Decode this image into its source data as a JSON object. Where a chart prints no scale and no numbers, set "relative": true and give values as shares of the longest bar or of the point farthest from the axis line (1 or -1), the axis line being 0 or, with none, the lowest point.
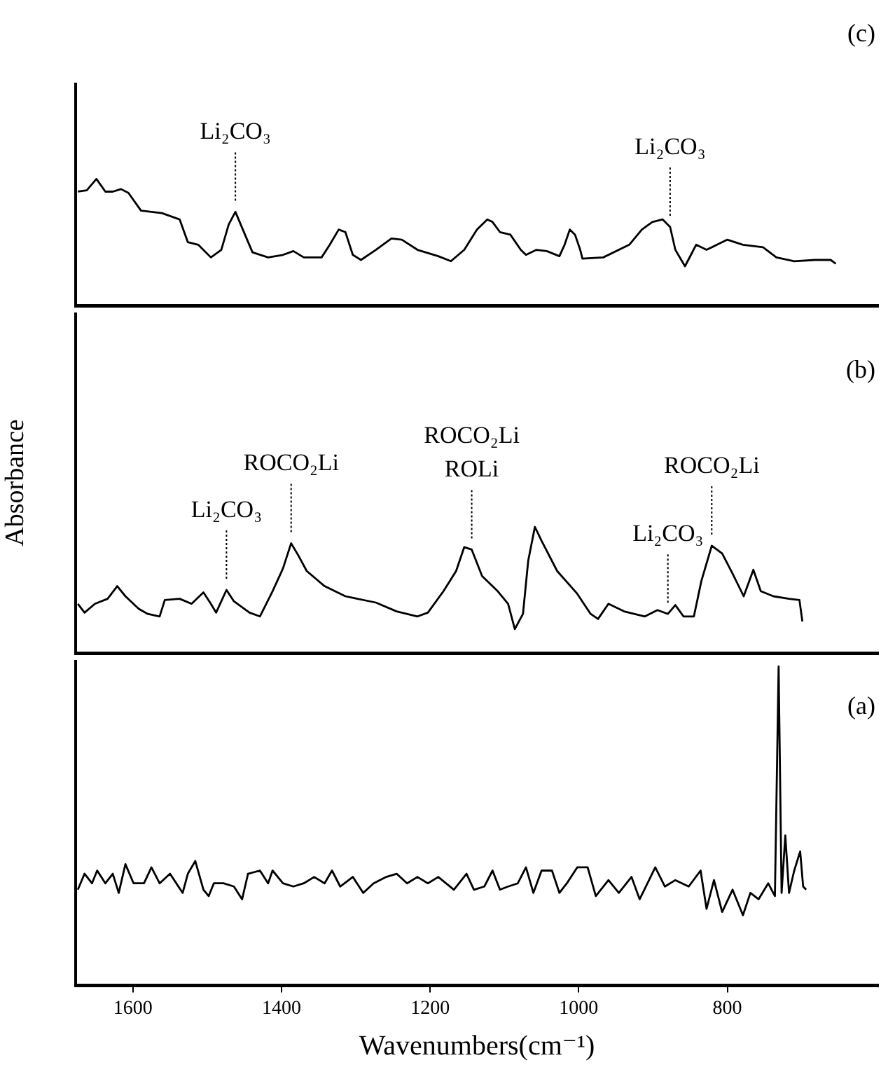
{
  "chart_data": [
    {
      "type": "line",
      "title": "(c)",
      "relative": true,
      "tick_labels": false,
      "marker": "none",
      "color": "#000000",
      "xlim": [
        1677,
        597
      ],
      "x": [
        1674,
        1662,
        1649,
        1637,
        1627,
        1616,
        1606,
        1589,
        1561,
        1537,
        1526,
        1512,
        1495,
        1481,
        1471,
        1462,
        1452,
        1439,
        1418,
        1398,
        1384,
        1370,
        1346,
        1335,
        1323,
        1314,
        1304,
        1293,
        1273,
        1252,
        1238,
        1217,
        1189,
        1172,
        1154,
        1137,
        1123,
        1116,
        1106,
        1092,
        1078,
        1071,
        1057,
        1043,
        1026,
        1019,
        1012,
        1005,
        998,
        995,
        967,
        932,
        915,
        901,
        887,
        877,
        870,
        857,
        849,
        842,
        828,
        814,
        800,
        779,
        752,
        734,
        710,
        682,
        661,
        654
      ],
      "values": [
        0.9,
        0.91,
        1.0,
        0.9,
        0.9,
        0.92,
        0.89,
        0.75,
        0.73,
        0.68,
        0.5,
        0.48,
        0.38,
        0.44,
        0.64,
        0.74,
        0.6,
        0.42,
        0.38,
        0.4,
        0.43,
        0.38,
        0.38,
        0.48,
        0.6,
        0.58,
        0.4,
        0.36,
        0.44,
        0.53,
        0.52,
        0.44,
        0.39,
        0.35,
        0.44,
        0.6,
        0.68,
        0.66,
        0.58,
        0.56,
        0.44,
        0.4,
        0.44,
        0.43,
        0.39,
        0.48,
        0.6,
        0.56,
        0.44,
        0.37,
        0.38,
        0.48,
        0.6,
        0.66,
        0.68,
        0.62,
        0.44,
        0.31,
        0.4,
        0.48,
        0.44,
        0.48,
        0.52,
        0.48,
        0.46,
        0.38,
        0.35,
        0.36,
        0.36,
        0.33
      ],
      "annotations": [
        {
          "text": "Li₂CO₃",
          "x": 1462,
          "y": 0.74
        },
        {
          "text": "Li₂CO₃",
          "x": 877,
          "y": 0.62
        }
      ]
    },
    {
      "type": "line",
      "title": "(b)",
      "ylabel": "Absorbance",
      "relative": true,
      "tick_labels": false,
      "marker": "none",
      "color": "#000000",
      "xlim": [
        1677,
        597
      ],
      "x": [
        1674,
        1665,
        1651,
        1634,
        1621,
        1610,
        1592,
        1580,
        1564,
        1557,
        1537,
        1521,
        1505,
        1495,
        1488,
        1474,
        1464,
        1443,
        1429,
        1412,
        1398,
        1387,
        1377,
        1366,
        1342,
        1314,
        1273,
        1245,
        1217,
        1203,
        1182,
        1165,
        1154,
        1144,
        1130,
        1109,
        1095,
        1086,
        1075,
        1068,
        1059,
        1050,
        1029,
        1002,
        984,
        974,
        960,
        939,
        911,
        894,
        880,
        870,
        859,
        845,
        835,
        821,
        807,
        793,
        778,
        765,
        755,
        738,
        717,
        703,
        699
      ],
      "values": [
        0.39,
        0.32,
        0.39,
        0.43,
        0.53,
        0.45,
        0.35,
        0.31,
        0.29,
        0.42,
        0.43,
        0.39,
        0.48,
        0.39,
        0.32,
        0.5,
        0.41,
        0.32,
        0.29,
        0.49,
        0.67,
        0.87,
        0.77,
        0.65,
        0.53,
        0.45,
        0.4,
        0.33,
        0.29,
        0.32,
        0.49,
        0.65,
        0.84,
        0.82,
        0.61,
        0.49,
        0.39,
        0.19,
        0.31,
        0.73,
        1.0,
        0.89,
        0.65,
        0.47,
        0.31,
        0.27,
        0.39,
        0.33,
        0.29,
        0.34,
        0.31,
        0.38,
        0.29,
        0.29,
        0.57,
        0.85,
        0.79,
        0.63,
        0.45,
        0.66,
        0.49,
        0.45,
        0.43,
        0.42,
        0.25
      ],
      "annotations": [
        {
          "text": "Li₂CO₃",
          "x": 1474,
          "y": 0.5
        },
        {
          "text": "ROCO₂Li",
          "x": 1387,
          "y": 0.87
        },
        {
          "text": "ROCO₂Li\nROLi",
          "x": 1144,
          "y": 0.82
        },
        {
          "text": "Li₂CO₃",
          "x": 880,
          "y": 0.31
        },
        {
          "text": "ROCO₂Li",
          "x": 821,
          "y": 0.85
        }
      ]
    },
    {
      "type": "line",
      "title": "(a)",
      "xlabel": "Wavenumbers(cm⁻¹)",
      "relative": true,
      "tick_labels": "x",
      "marker": "none",
      "color": "#000000",
      "xlim": [
        1677,
        597
      ],
      "xticks": [
        1600,
        1400,
        1200,
        1000,
        800
      ],
      "x": [
        1674,
        1665,
        1655,
        1648,
        1637,
        1627,
        1619,
        1610,
        1599,
        1585,
        1575,
        1564,
        1550,
        1533,
        1526,
        1516,
        1505,
        1498,
        1491,
        1478,
        1464,
        1453,
        1445,
        1429,
        1418,
        1412,
        1398,
        1384,
        1370,
        1356,
        1342,
        1332,
        1321,
        1304,
        1290,
        1276,
        1259,
        1245,
        1231,
        1217,
        1203,
        1189,
        1168,
        1151,
        1141,
        1127,
        1116,
        1106,
        1095,
        1082,
        1071,
        1061,
        1050,
        1036,
        1026,
        1016,
        1002,
        988,
        977,
        960,
        946,
        929,
        918,
        897,
        884,
        870,
        852,
        836,
        828,
        818,
        807,
        793,
        779,
        769,
        758,
        745,
        736,
        731,
        727,
        722,
        717,
        710,
        702,
        698,
        694
      ],
      "values": [
        0.3,
        0.35,
        0.32,
        0.36,
        0.32,
        0.35,
        0.29,
        0.38,
        0.32,
        0.32,
        0.37,
        0.32,
        0.35,
        0.29,
        0.35,
        0.39,
        0.3,
        0.28,
        0.32,
        0.32,
        0.31,
        0.27,
        0.35,
        0.36,
        0.32,
        0.36,
        0.32,
        0.31,
        0.32,
        0.34,
        0.32,
        0.36,
        0.31,
        0.34,
        0.29,
        0.32,
        0.34,
        0.35,
        0.32,
        0.34,
        0.32,
        0.34,
        0.3,
        0.35,
        0.3,
        0.31,
        0.36,
        0.3,
        0.31,
        0.32,
        0.37,
        0.29,
        0.36,
        0.36,
        0.29,
        0.32,
        0.37,
        0.37,
        0.28,
        0.33,
        0.29,
        0.34,
        0.27,
        0.37,
        0.31,
        0.33,
        0.31,
        0.36,
        0.24,
        0.33,
        0.23,
        0.3,
        0.22,
        0.29,
        0.27,
        0.32,
        0.28,
        1.0,
        0.29,
        0.47,
        0.29,
        0.36,
        0.42,
        0.31,
        0.3
      ]
    }
  ]
}
